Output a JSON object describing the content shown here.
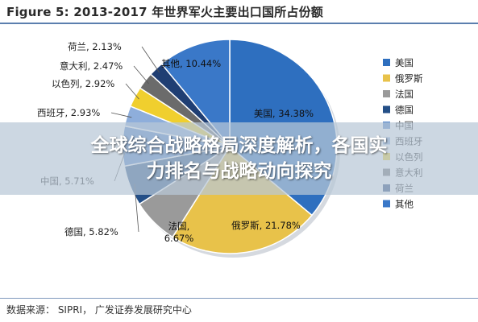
{
  "header": {
    "figure_title": "Figure 5:  2013-2017 年世界军火主要出口国所占份额"
  },
  "chart_data": {
    "type": "pie",
    "title": "2013-2017 年世界军火主要出口国所占份额",
    "slices": [
      {
        "name": "美国",
        "value": 34.38,
        "label": "美国, 34.38%",
        "color": "#2e6fbf"
      },
      {
        "name": "俄罗斯",
        "value": 21.78,
        "label": "俄罗斯, 21.78%",
        "color": "#e8c24a"
      },
      {
        "name": "法国",
        "value": 6.67,
        "label": "法国,\n6.67%",
        "color": "#9a9a9a"
      },
      {
        "name": "德国",
        "value": 5.82,
        "label": "德国, 5.82%",
        "color": "#244f87"
      },
      {
        "name": "中国",
        "value": 5.71,
        "label": "中国, 5.71%",
        "color": "#4f82c9"
      },
      {
        "name": "西班牙",
        "value": 2.93,
        "label": "西班牙, 2.93%",
        "color": "#8eaedb"
      },
      {
        "name": "以色列",
        "value": 2.92,
        "label": "以色列, 2.92%",
        "color": "#f0cf2e"
      },
      {
        "name": "意大利",
        "value": 2.47,
        "label": "意大利, 2.47%",
        "color": "#6b6b6b"
      },
      {
        "name": "荷兰",
        "value": 2.13,
        "label": "荷兰, 2.13%",
        "color": "#1f3e73"
      },
      {
        "name": "其他",
        "value": 10.44,
        "label": "其他, 10.44%",
        "color": "#3a78c8"
      }
    ],
    "legend_position": "right"
  },
  "overlay": {
    "line1": "全球综合战略格局深度解析，各国实",
    "line2": "力排名与战略动向探究"
  },
  "footer": {
    "source": "数据来源： SIPRI， 广发证券发展研究中心"
  }
}
